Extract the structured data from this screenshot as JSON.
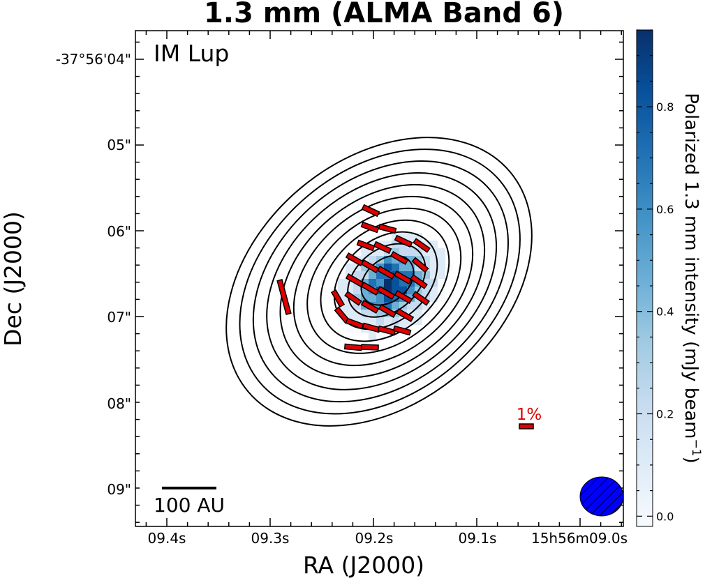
{
  "chart_data": {
    "type": "heatmap",
    "title": "1.3 mm (ALMA Band 6)",
    "xlabel": "RA (J2000)",
    "ylabel": "Dec (J2000)",
    "source_label": "IM Lup",
    "x_ticks": [
      "09.4s",
      "09.3s",
      "09.2s",
      "09.1s",
      "15h56m09.0s"
    ],
    "y_ticks": [
      "-37°56'04\"",
      "05\"",
      "06\"",
      "07\"",
      "08\"",
      "09\""
    ],
    "colorbar": {
      "label_prefix": "Polarized 1.3 mm intensity (mJy beam",
      "label_sup": "−1",
      "label_suffix": ")",
      "ticks": [
        "0.0",
        "0.2",
        "0.4",
        "0.6",
        "0.8"
      ],
      "values": [
        0.0,
        0.2,
        0.4,
        0.6,
        0.8
      ],
      "range": [
        -0.02,
        0.95
      ],
      "colormap": "Blues"
    },
    "scalebar_label": "100 AU",
    "reference_vector_label": "1%",
    "contour_count": 11,
    "vector_color": "#e00000",
    "beam_color": "#0000ff"
  }
}
